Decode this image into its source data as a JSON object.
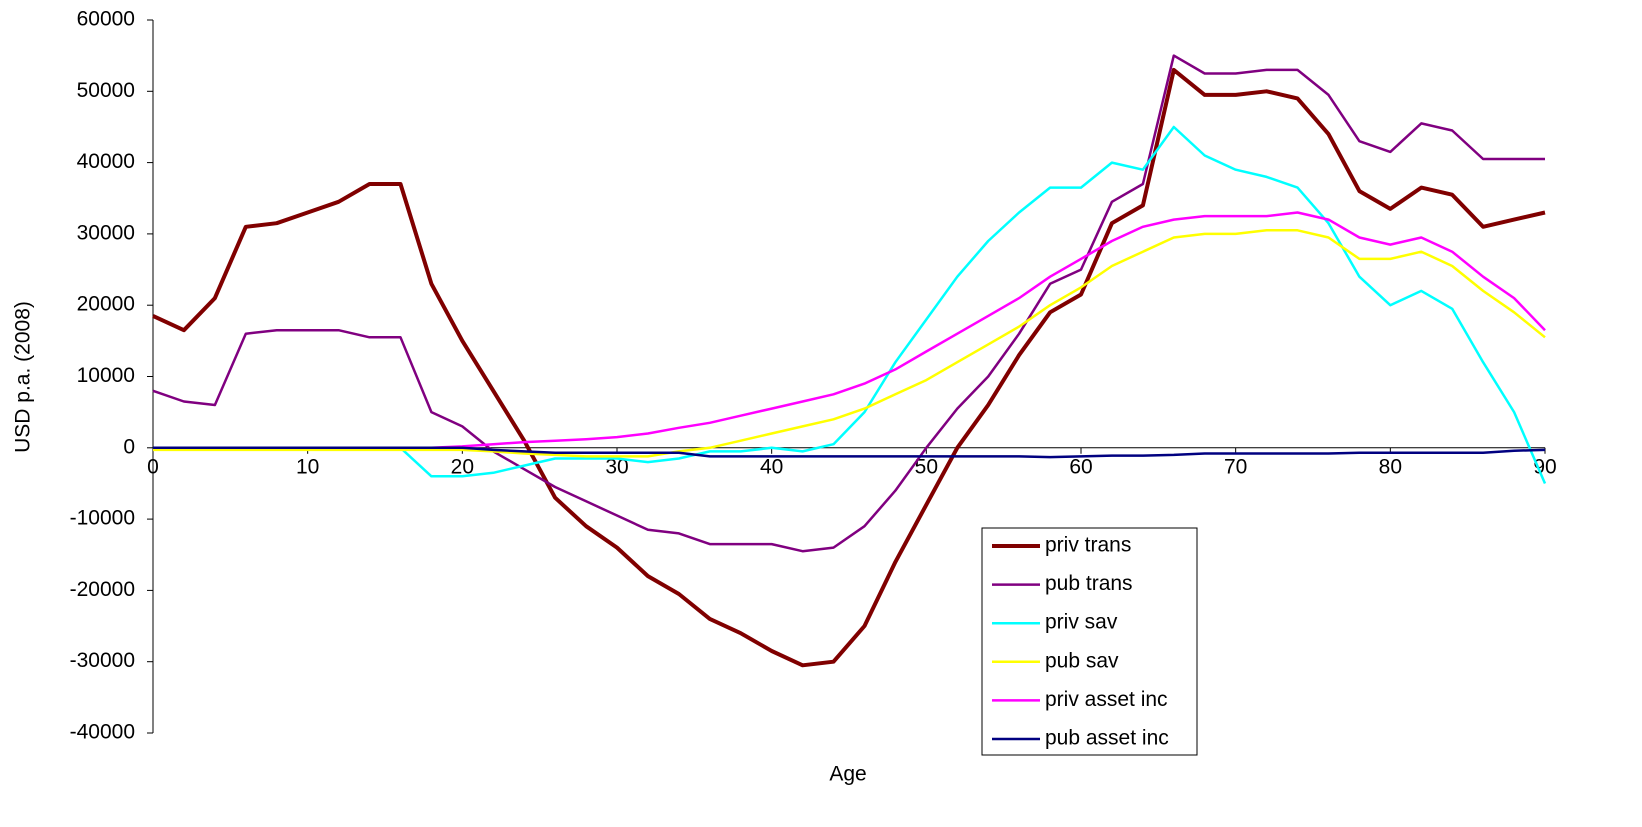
{
  "chart_data": {
    "type": "line",
    "x_label": "Age",
    "y_label": "USD p.a. (2008)",
    "x": [
      0,
      2,
      4,
      6,
      8,
      10,
      12,
      14,
      16,
      18,
      20,
      22,
      24,
      26,
      28,
      30,
      32,
      34,
      36,
      38,
      40,
      42,
      44,
      46,
      48,
      50,
      52,
      54,
      56,
      58,
      60,
      62,
      64,
      66,
      68,
      70,
      72,
      74,
      76,
      78,
      80,
      82,
      84,
      86,
      88,
      90
    ],
    "xlim": [
      0,
      90
    ],
    "xticks": [
      0,
      10,
      20,
      30,
      40,
      50,
      60,
      70,
      80,
      90
    ],
    "ylim": [
      -40000,
      60000
    ],
    "yticks": [
      -40000,
      -30000,
      -20000,
      -10000,
      0,
      10000,
      20000,
      30000,
      40000,
      50000,
      60000
    ],
    "series": [
      {
        "name": "priv trans",
        "color": "#800000",
        "values": [
          18500,
          16500,
          21000,
          31000,
          31500,
          33000,
          34500,
          37000,
          37000,
          23000,
          15000,
          8000,
          1000,
          -7000,
          -11000,
          -14000,
          -18000,
          -20500,
          -24000,
          -26000,
          -28500,
          -30500,
          -30000,
          -25000,
          -16000,
          -8000,
          0,
          6000,
          13000,
          19000,
          21500,
          31500,
          34000,
          53000,
          49500,
          49500,
          50000,
          49000,
          44000,
          36000,
          33500,
          36500,
          35500,
          31000,
          32000,
          33000
        ]
      },
      {
        "name": "pub trans",
        "color": "#800080",
        "values": [
          8000,
          6500,
          6000,
          16000,
          16500,
          16500,
          16500,
          15500,
          15500,
          5000,
          3000,
          -500,
          -3000,
          -5500,
          -7500,
          -9500,
          -11500,
          -12000,
          -13500,
          -13500,
          -13500,
          -14500,
          -14000,
          -11000,
          -6000,
          0,
          5500,
          10000,
          16000,
          23000,
          25000,
          34500,
          37000,
          55000,
          52500,
          52500,
          53000,
          53000,
          49500,
          43000,
          41500,
          45500,
          44500,
          40500,
          40500,
          40500
        ]
      },
      {
        "name": "priv sav",
        "color": "#00ffff",
        "values": [
          0,
          0,
          0,
          0,
          0,
          0,
          0,
          0,
          0,
          -4000,
          -4000,
          -3500,
          -2500,
          -1500,
          -1500,
          -1500,
          -2000,
          -1500,
          -500,
          -500,
          0,
          -500,
          500,
          5000,
          12000,
          18000,
          24000,
          29000,
          33000,
          36500,
          36500,
          40000,
          39000,
          45000,
          41000,
          39000,
          38000,
          36500,
          31500,
          24000,
          20000,
          22000,
          19500,
          12000,
          5000,
          -5000
        ]
      },
      {
        "name": "pub sav",
        "color": "#ffff00",
        "values": [
          -300,
          -300,
          -300,
          -300,
          -300,
          -300,
          -300,
          -300,
          -300,
          -300,
          -300,
          -500,
          -800,
          -1000,
          -1200,
          -1200,
          -1200,
          -500,
          0,
          1000,
          2000,
          3000,
          4000,
          5500,
          7500,
          9500,
          12000,
          14500,
          17000,
          20000,
          22500,
          25500,
          27500,
          29500,
          30000,
          30000,
          30500,
          30500,
          29500,
          26500,
          26500,
          27500,
          25500,
          22000,
          19000,
          15500
        ]
      },
      {
        "name": "priv asset inc",
        "color": "#ff00ff",
        "values": [
          0,
          0,
          0,
          0,
          0,
          0,
          0,
          0,
          0,
          0,
          200,
          500,
          800,
          1000,
          1200,
          1500,
          2000,
          2800,
          3500,
          4500,
          5500,
          6500,
          7500,
          9000,
          11000,
          13500,
          16000,
          18500,
          21000,
          24000,
          26500,
          29000,
          31000,
          32000,
          32500,
          32500,
          32500,
          33000,
          32000,
          29500,
          28500,
          29500,
          27500,
          24000,
          21000,
          16500
        ]
      },
      {
        "name": "pub asset inc",
        "color": "#000080",
        "values": [
          0,
          0,
          0,
          0,
          0,
          0,
          0,
          0,
          0,
          0,
          0,
          -300,
          -500,
          -700,
          -700,
          -700,
          -700,
          -700,
          -1200,
          -1200,
          -1200,
          -1200,
          -1200,
          -1200,
          -1200,
          -1200,
          -1200,
          -1200,
          -1200,
          -1300,
          -1200,
          -1100,
          -1100,
          -1000,
          -800,
          -800,
          -800,
          -800,
          -800,
          -700,
          -700,
          -700,
          -700,
          -700,
          -400,
          -300
        ]
      }
    ]
  }
}
